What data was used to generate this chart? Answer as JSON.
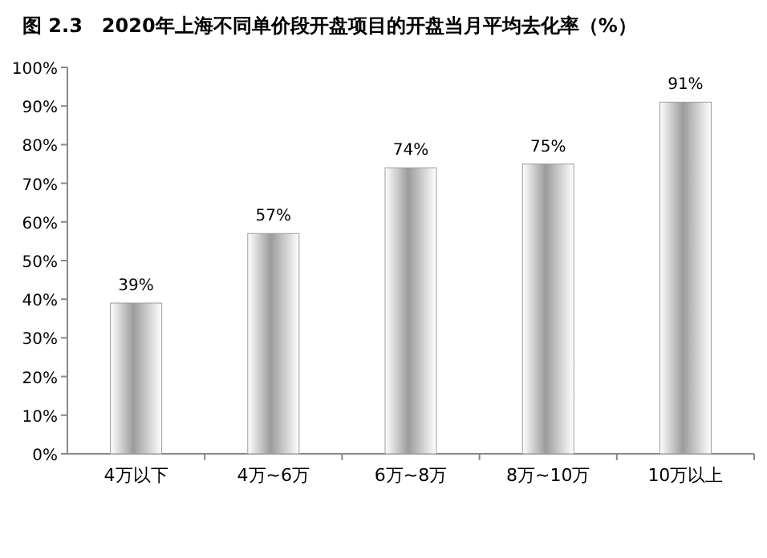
{
  "chart_data": {
    "type": "bar",
    "title": "图 2.3　2020年上海不同单价段开盘项目的开盘当月平均去化率（%）",
    "categories": [
      "4万以下",
      "4万~6万",
      "6万~8万",
      "8万~10万",
      "10万以上"
    ],
    "values": [
      39,
      57,
      74,
      75,
      91
    ],
    "value_labels": [
      "39%",
      "57%",
      "74%",
      "75%",
      "91%"
    ],
    "color": "#9b9b9b",
    "ylim": [
      0,
      100
    ],
    "yticks": [
      {
        "value": 0,
        "label": "0%"
      },
      {
        "value": 10,
        "label": "10%"
      },
      {
        "value": 20,
        "label": "20%"
      },
      {
        "value": 30,
        "label": "30%"
      },
      {
        "value": 40,
        "label": "40%"
      },
      {
        "value": 50,
        "label": "50%"
      },
      {
        "value": 60,
        "label": "60%"
      },
      {
        "value": 70,
        "label": "70%"
      },
      {
        "value": 80,
        "label": "80%"
      },
      {
        "value": 90,
        "label": "90%"
      },
      {
        "value": 100,
        "label": "100%"
      }
    ]
  }
}
